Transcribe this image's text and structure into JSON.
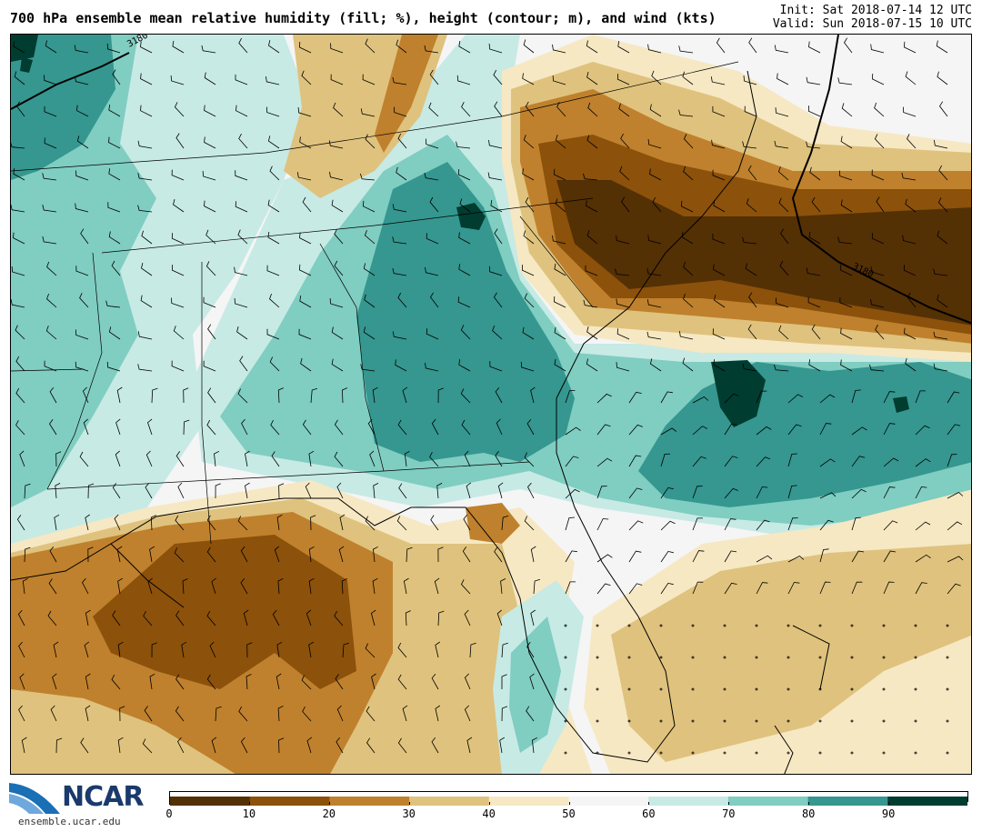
{
  "header": {
    "title": "700 hPa ensemble mean relative humidity (fill; %), height (contour; m), and wind (kts)",
    "init": "Init: Sat 2018-07-14 12 UTC",
    "valid": "Valid: Sun 2018-07-15 10 UTC"
  },
  "map": {
    "contour_label": "3180",
    "colors": {
      "c0": "#543005",
      "c10": "#8c510a",
      "c20": "#bf812d",
      "c30": "#dfc27d",
      "c40": "#f6e8c3",
      "c50": "#f5f5f5",
      "c60": "#c7eae5",
      "c70": "#80cdc1",
      "c80": "#35978f",
      "c90": "#003c30"
    }
  },
  "colorbar": {
    "ticks": [
      "0",
      "10",
      "20",
      "30",
      "40",
      "50",
      "60",
      "70",
      "80",
      "90"
    ]
  },
  "logo": {
    "name": "NCAR",
    "url": "ensemble.ucar.edu"
  }
}
